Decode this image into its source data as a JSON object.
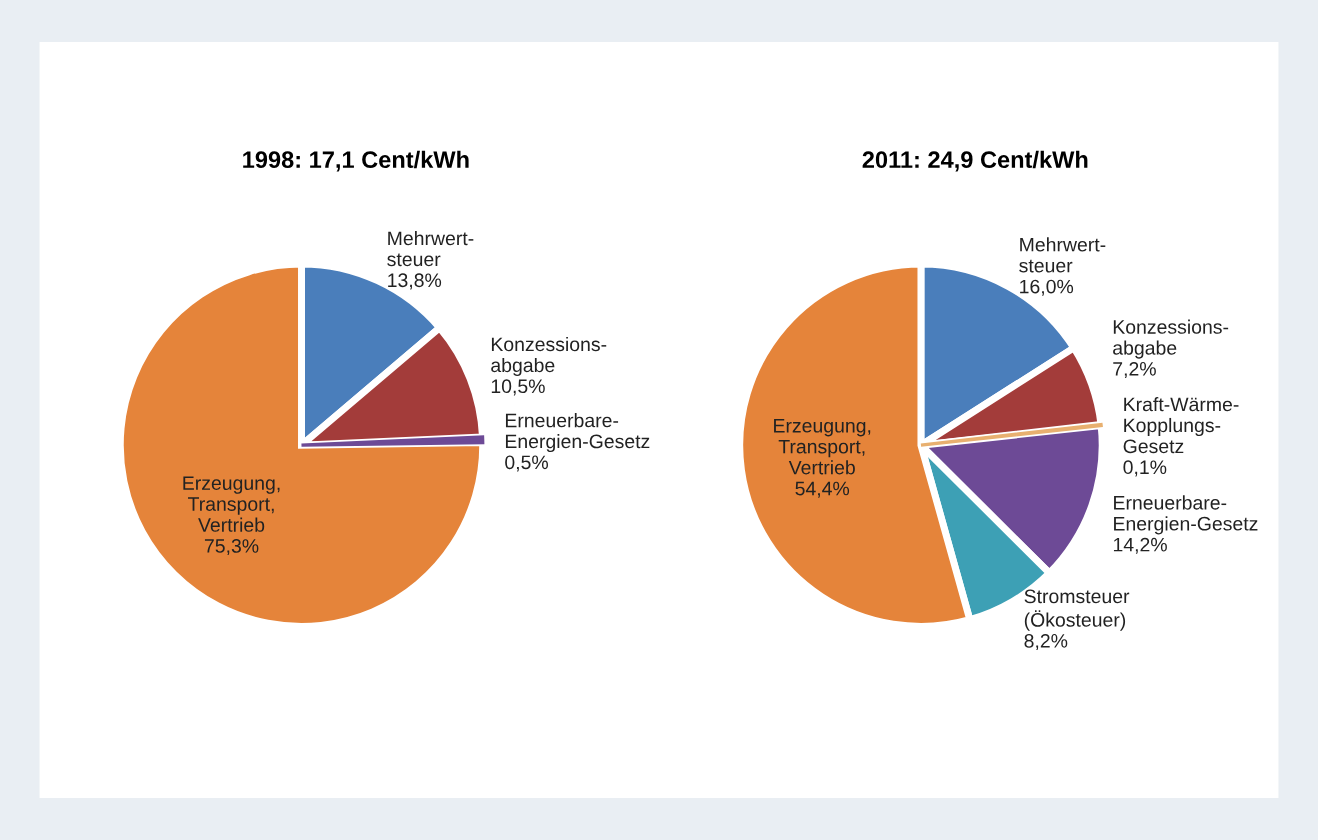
{
  "chart_data": [
    {
      "type": "pie",
      "title": "1998: 17,1 Cent/kWh",
      "categories": [
        "Mehrwert-\nsteuer",
        "Konzessions-\nabgabe",
        "Erneuerbare-\nEnergien-Gesetz",
        "Erzeugung,\nTransport,\nVertrieb"
      ],
      "values": [
        13.8,
        10.5,
        0.5,
        75.3
      ],
      "value_labels": [
        "13,8%",
        "10,5%",
        "0,5%",
        "75,3%"
      ],
      "colors": [
        "#4a7ebb",
        "#a33c3a",
        "#6d4a96",
        "#e5843a"
      ]
    },
    {
      "type": "pie",
      "title": "2011: 24,9 Cent/kWh",
      "categories": [
        "Mehrwert-\nsteuer",
        "Konzessions-\nabgabe",
        "Kraft-Wärme-\nKopplungs-\nGesetz",
        "Erneuerbare-\nEnergien-Gesetz",
        "Stromsteuer\n(Ökosteuer)",
        "Erzeugung,\nTransport,\nVertrieb"
      ],
      "values": [
        16.0,
        7.2,
        0.1,
        14.2,
        8.2,
        54.4
      ],
      "value_labels": [
        "16,0%",
        "7,2%",
        "0,1%",
        "14,2%",
        "8,2%",
        "54,4%"
      ],
      "colors": [
        "#4a7ebb",
        "#a33c3a",
        "#e8b070",
        "#6d4a96",
        "#3da0b5",
        "#e5843a"
      ]
    }
  ]
}
